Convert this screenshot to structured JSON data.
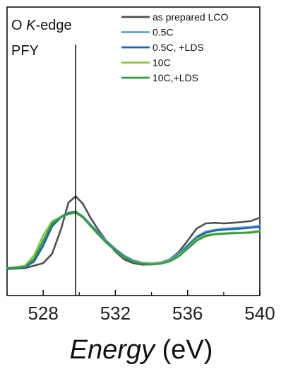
{
  "chart_data": {
    "type": "line",
    "panel_label": {
      "prefix": "O ",
      "italic": "K",
      "suffix": "-edge",
      "line2": "PFY"
    },
    "xlabel": {
      "italic": "Energy",
      "unit": " (eV)"
    },
    "ylabel": "",
    "xlim": [
      526,
      540
    ],
    "ylim": [
      0,
      1.0
    ],
    "xticks": [
      528,
      532,
      536,
      540
    ],
    "xtick_labels": [
      "528",
      "532",
      "536",
      "540"
    ],
    "yticks_shown": false,
    "grid": false,
    "legend_position": "top-right",
    "vline": {
      "x": 529.8,
      "ymax": 0.87
    },
    "series": [
      {
        "name": "as prepared LCO",
        "color": "#505050",
        "x": [
          526,
          527,
          528,
          528.5,
          529,
          529.4,
          529.8,
          530.2,
          530.6,
          531,
          531.5,
          532,
          532.5,
          533,
          533.5,
          534,
          534.5,
          535,
          535.5,
          536,
          536.5,
          537,
          537.5,
          538,
          538.5,
          539,
          539.5,
          540
        ],
        "y": [
          0.092,
          0.095,
          0.112,
          0.145,
          0.232,
          0.322,
          0.344,
          0.318,
          0.272,
          0.232,
          0.19,
          0.152,
          0.125,
          0.112,
          0.107,
          0.108,
          0.112,
          0.125,
          0.15,
          0.19,
          0.232,
          0.25,
          0.252,
          0.25,
          0.252,
          0.255,
          0.258,
          0.27
        ]
      },
      {
        "name": "0.5C",
        "color": "#5aa8dc",
        "x": [
          526,
          527,
          527.5,
          528,
          528.5,
          529,
          529.4,
          529.8,
          530.2,
          530.6,
          531,
          531.5,
          532,
          532.5,
          533,
          533.5,
          534,
          534.5,
          535,
          535.5,
          536,
          536.5,
          537,
          537.5,
          538,
          538.5,
          539,
          539.5,
          540
        ],
        "y": [
          0.095,
          0.1,
          0.12,
          0.175,
          0.245,
          0.275,
          0.287,
          0.292,
          0.275,
          0.248,
          0.222,
          0.19,
          0.162,
          0.138,
          0.122,
          0.114,
          0.112,
          0.115,
          0.125,
          0.145,
          0.175,
          0.205,
          0.222,
          0.228,
          0.232,
          0.234,
          0.236,
          0.238,
          0.242
        ]
      },
      {
        "name": "0.5C, +LDS",
        "color": "#1f63b0",
        "x": [
          526,
          527,
          527.5,
          528,
          528.5,
          529,
          529.4,
          529.8,
          530.2,
          530.6,
          531,
          531.5,
          532,
          532.5,
          533,
          533.5,
          534,
          534.5,
          535,
          535.5,
          536,
          536.5,
          537,
          537.5,
          538,
          538.5,
          539,
          539.5,
          540
        ],
        "y": [
          0.093,
          0.098,
          0.118,
          0.172,
          0.24,
          0.272,
          0.285,
          0.29,
          0.272,
          0.245,
          0.218,
          0.186,
          0.158,
          0.134,
          0.118,
          0.11,
          0.108,
          0.112,
          0.122,
          0.14,
          0.17,
          0.2,
          0.218,
          0.225,
          0.228,
          0.23,
          0.232,
          0.235,
          0.238
        ]
      },
      {
        "name": "10C",
        "color": "#8dc63f",
        "x": [
          526,
          527,
          527.5,
          528,
          528.5,
          529,
          529.4,
          529.8,
          530.2,
          530.6,
          531,
          531.5,
          532,
          532.5,
          533,
          533.5,
          534,
          534.5,
          535,
          535.5,
          536,
          536.5,
          537,
          537.5,
          538,
          538.5,
          539,
          539.5,
          540
        ],
        "y": [
          0.095,
          0.103,
          0.14,
          0.208,
          0.258,
          0.272,
          0.282,
          0.286,
          0.27,
          0.242,
          0.214,
          0.182,
          0.155,
          0.132,
          0.118,
          0.112,
          0.11,
          0.112,
          0.12,
          0.138,
          0.165,
          0.195,
          0.21,
          0.214,
          0.216,
          0.218,
          0.218,
          0.22,
          0.224
        ]
      },
      {
        "name": "10C,+LDS",
        "color": "#2e9e3f",
        "x": [
          526,
          527,
          527.5,
          528,
          528.5,
          529,
          529.4,
          529.8,
          530.2,
          530.6,
          531,
          531.5,
          532,
          532.5,
          533,
          533.5,
          534,
          534.5,
          535,
          535.5,
          536,
          536.5,
          537,
          537.5,
          538,
          538.5,
          539,
          539.5,
          540
        ],
        "y": [
          0.094,
          0.1,
          0.128,
          0.19,
          0.25,
          0.272,
          0.283,
          0.289,
          0.272,
          0.244,
          0.216,
          0.184,
          0.156,
          0.133,
          0.117,
          0.11,
          0.108,
          0.11,
          0.118,
          0.135,
          0.162,
          0.19,
          0.206,
          0.212,
          0.214,
          0.216,
          0.217,
          0.218,
          0.222
        ]
      }
    ]
  }
}
